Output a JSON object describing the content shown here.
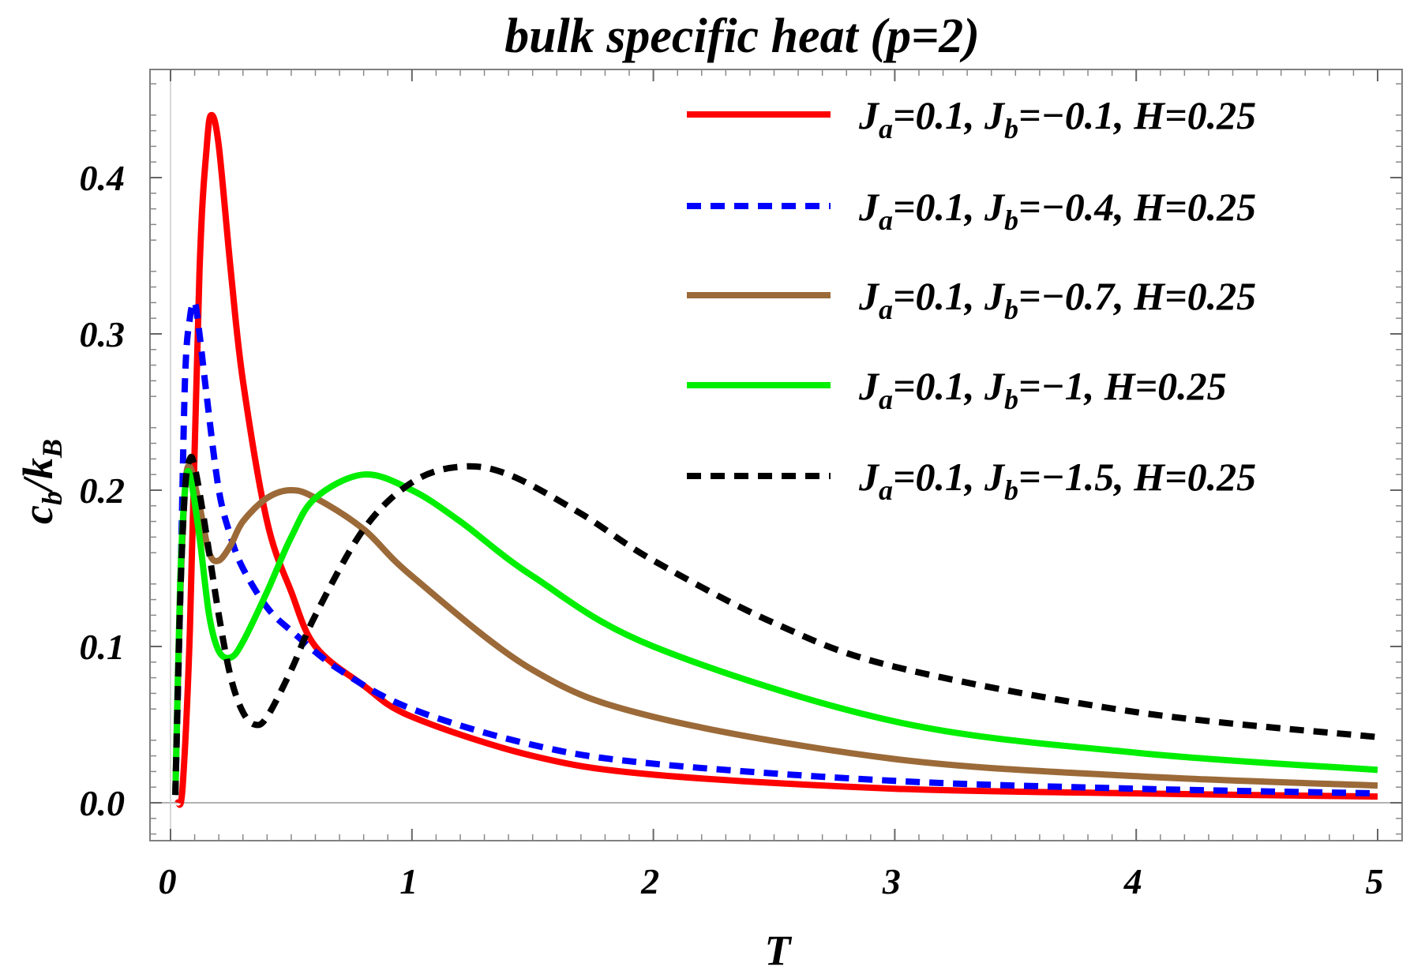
{
  "chart_data": {
    "type": "line",
    "title": "bulk specific heat (p=2)",
    "xlabel": "T",
    "ylabel": {
      "main": "c",
      "sub1": "b",
      "sep": "/k",
      "sub2": "B"
    },
    "xlim": [
      0,
      5
    ],
    "ylim": [
      0,
      0.45
    ],
    "xticks": [
      "0",
      "1",
      "2",
      "3",
      "4",
      "5"
    ],
    "yticks": [
      "0.0",
      "0.1",
      "0.2",
      "0.3",
      "0.4"
    ],
    "legend_position": "top-right",
    "grid": false,
    "series": [
      {
        "name": "J_a=0.1, J_b=−0.1, H=0.25",
        "label": {
          "a": "J",
          "as": "a",
          "av": "=0.1, ",
          "b": "J",
          "bs": "b",
          "bv": "=−0.1, H=0.25"
        },
        "color": "#ff0000",
        "dash": "solid",
        "x": [
          0.03,
          0.05,
          0.08,
          0.12,
          0.15,
          0.17,
          0.2,
          0.25,
          0.3,
          0.4,
          0.5,
          0.6,
          0.8,
          1.0,
          1.5,
          2.0,
          3.0,
          4.0,
          5.0
        ],
        "y": [
          0.0,
          0.01,
          0.11,
          0.34,
          0.42,
          0.44,
          0.42,
          0.34,
          0.27,
          0.18,
          0.135,
          0.1,
          0.075,
          0.055,
          0.03,
          0.018,
          0.009,
          0.006,
          0.004
        ]
      },
      {
        "name": "J_a=0.1, J_b=−0.4, H=0.25",
        "label": {
          "a": "J",
          "as": "a",
          "av": "=0.1, ",
          "b": "J",
          "bs": "b",
          "bv": "=−0.4, H=0.25"
        },
        "color": "#0000ff",
        "dash": "dashed",
        "x": [
          0.02,
          0.04,
          0.06,
          0.08,
          0.1,
          0.12,
          0.15,
          0.2,
          0.25,
          0.3,
          0.4,
          0.5,
          0.7,
          1.0,
          1.5,
          2.0,
          3.0,
          4.0,
          5.0
        ],
        "y": [
          0.005,
          0.13,
          0.27,
          0.31,
          0.32,
          0.3,
          0.26,
          0.2,
          0.17,
          0.15,
          0.125,
          0.11,
          0.085,
          0.06,
          0.037,
          0.025,
          0.014,
          0.009,
          0.006
        ]
      },
      {
        "name": "J_a=0.1, J_b=−0.7, H=0.25",
        "label": {
          "a": "J",
          "as": "a",
          "av": "=0.1, ",
          "b": "J",
          "bs": "b",
          "bv": "=−0.7, H=0.25"
        },
        "color": "#9b6a38",
        "dash": "solid",
        "x": [
          0.02,
          0.04,
          0.06,
          0.08,
          0.12,
          0.16,
          0.2,
          0.25,
          0.3,
          0.4,
          0.5,
          0.6,
          0.8,
          1.0,
          1.5,
          2.0,
          3.0,
          4.0,
          5.0
        ],
        "y": [
          0.005,
          0.13,
          0.2,
          0.215,
          0.19,
          0.16,
          0.155,
          0.165,
          0.18,
          0.195,
          0.2,
          0.195,
          0.175,
          0.145,
          0.085,
          0.055,
          0.028,
          0.017,
          0.011
        ]
      },
      {
        "name": "J_a=0.1, J_b=−1, H=0.25",
        "label": {
          "a": "J",
          "as": "a",
          "av": "=0.1, ",
          "b": "J",
          "bs": "b",
          "bv": "=−1, H=0.25"
        },
        "color": "#00ee00",
        "dash": "solid",
        "x": [
          0.02,
          0.04,
          0.06,
          0.08,
          0.12,
          0.16,
          0.2,
          0.25,
          0.3,
          0.4,
          0.5,
          0.6,
          0.8,
          1.0,
          1.2,
          1.5,
          2.0,
          3.0,
          4.0,
          5.0
        ],
        "y": [
          0.005,
          0.14,
          0.2,
          0.21,
          0.17,
          0.12,
          0.097,
          0.093,
          0.103,
          0.135,
          0.17,
          0.195,
          0.21,
          0.2,
          0.18,
          0.145,
          0.1,
          0.052,
          0.032,
          0.021
        ]
      },
      {
        "name": "J_a=0.1, J_b=−1.5, H=0.25",
        "label": {
          "a": "J",
          "as": "a",
          "av": "=0.1, ",
          "b": "J",
          "bs": "b",
          "bv": "=−1.5, H=0.25"
        },
        "color": "#000000",
        "dash": "dashed",
        "x": [
          0.02,
          0.04,
          0.06,
          0.08,
          0.1,
          0.14,
          0.2,
          0.25,
          0.3,
          0.35,
          0.4,
          0.5,
          0.6,
          0.8,
          1.0,
          1.2,
          1.4,
          1.7,
          2.0,
          2.5,
          3.0,
          4.0,
          5.0
        ],
        "y": [
          0.005,
          0.13,
          0.2,
          0.22,
          0.215,
          0.18,
          0.12,
          0.08,
          0.058,
          0.05,
          0.055,
          0.085,
          0.12,
          0.175,
          0.205,
          0.215,
          0.21,
          0.185,
          0.155,
          0.115,
          0.087,
          0.058,
          0.042
        ]
      }
    ]
  }
}
